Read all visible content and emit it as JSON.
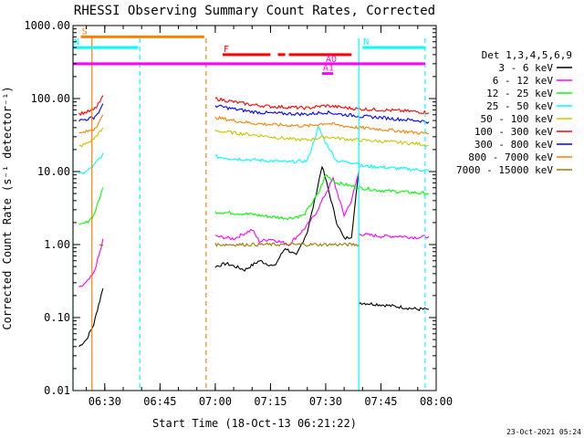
{
  "chart_data": {
    "type": "line",
    "title": "RHESSI Observing Summary Count Rates, Corrected",
    "xlabel": "Start Time (18-Oct-13 06:21:22)",
    "ylabel": "Corrected Count Rate (s⁻¹ detector⁻¹)",
    "scale": {
      "y": "log"
    },
    "xlim": [
      "06:21:22",
      "08:00:00"
    ],
    "ylim": [
      0.01,
      1000
    ],
    "xticks": [
      "06:30",
      "06:45",
      "07:00",
      "07:15",
      "07:30",
      "07:45",
      "08:00"
    ],
    "yticks": [
      "0.01",
      "0.10",
      "1.00",
      "10.00",
      "100.00",
      "1000.00"
    ],
    "legend": {
      "title": "Det 1,3,4,5,6,9",
      "position": "right"
    },
    "series": [
      {
        "name": "3 - 6 keV",
        "color": "#000000",
        "segments": [
          {
            "x": [
              "06:23",
              "06:25",
              "06:27",
              "06:28",
              "06:29",
              "06:29:30"
            ],
            "y": [
              0.04,
              0.05,
              0.08,
              0.13,
              0.2,
              0.25
            ]
          },
          {
            "x": [
              "07:00",
              "07:03",
              "07:08",
              "07:12",
              "07:16",
              "07:19",
              "07:22",
              "07:25",
              "07:27",
              "07:29",
              "07:31",
              "07:33",
              "07:35",
              "07:37",
              "07:39"
            ],
            "y": [
              0.5,
              0.55,
              0.45,
              0.6,
              0.5,
              0.9,
              0.7,
              1.5,
              4,
              12,
              5,
              2,
              1.2,
              1.3,
              10
            ]
          },
          {
            "x": [
              "07:39",
              "07:45",
              "07:50",
              "07:55",
              "07:58"
            ],
            "y": [
              0.16,
              0.15,
              0.14,
              0.13,
              0.13
            ]
          }
        ]
      },
      {
        "name": "6 - 12 keV",
        "color": "#ff00ff",
        "segments": [
          {
            "x": [
              "06:23",
              "06:25",
              "06:27",
              "06:28",
              "06:29",
              "06:29:30"
            ],
            "y": [
              0.25,
              0.3,
              0.4,
              0.6,
              0.9,
              1.2
            ]
          },
          {
            "x": [
              "07:00",
              "07:05",
              "07:10",
              "07:12",
              "07:15",
              "07:20",
              "07:24",
              "07:27",
              "07:30",
              "07:32",
              "07:35",
              "07:37",
              "07:39"
            ],
            "y": [
              1.3,
              1.2,
              1.6,
              1.1,
              1.2,
              1.0,
              1.6,
              2.5,
              5,
              8,
              2.5,
              4,
              10
            ]
          },
          {
            "x": [
              "07:39",
              "07:45",
              "07:50",
              "07:55",
              "07:58"
            ],
            "y": [
              1.4,
              1.3,
              1.3,
              1.25,
              1.3
            ]
          }
        ]
      },
      {
        "name": "12 - 25 keV",
        "color": "#00ff00",
        "segments": [
          {
            "x": [
              "06:23",
              "06:25",
              "06:27",
              "06:28",
              "06:29",
              "06:29:30"
            ],
            "y": [
              1.8,
              2,
              2.5,
              3.5,
              5,
              6
            ]
          },
          {
            "x": [
              "07:00",
              "07:05",
              "07:10",
              "07:15",
              "07:20",
              "07:24",
              "07:28",
              "07:30",
              "07:33",
              "07:36",
              "07:39"
            ],
            "y": [
              2.8,
              2.7,
              2.6,
              2.4,
              2.3,
              2.5,
              5,
              9,
              7,
              6.5,
              6
            ]
          },
          {
            "x": [
              "07:39",
              "07:45",
              "07:50",
              "07:55",
              "07:58"
            ],
            "y": [
              6,
              5.5,
              5.3,
              5.1,
              5
            ]
          }
        ]
      },
      {
        "name": "25 - 50 keV",
        "color": "#00ffff",
        "segments": [
          {
            "x": [
              "06:23",
              "06:25",
              "06:27",
              "06:28",
              "06:29",
              "06:29:30"
            ],
            "y": [
              9,
              10,
              12,
              14,
              16,
              18
            ]
          },
          {
            "x": [
              "07:00",
              "07:05",
              "07:10",
              "07:15",
              "07:20",
              "07:25",
              "07:28",
              "07:30",
              "07:33",
              "07:36",
              "07:39"
            ],
            "y": [
              16,
              15,
              14.5,
              14,
              13.5,
              14,
              40,
              25,
              14,
              13.5,
              13
            ]
          },
          {
            "x": [
              "07:39",
              "07:45",
              "07:50",
              "07:55",
              "07:58"
            ],
            "y": [
              12,
              11.5,
              11,
              10.6,
              10.3
            ]
          }
        ]
      },
      {
        "name": "50 - 100 keV",
        "color": "#c8c800",
        "segments": [
          {
            "x": [
              "06:23",
              "06:25",
              "06:27",
              "06:28",
              "06:29",
              "06:29:30"
            ],
            "y": [
              22,
              24,
              28,
              32,
              36,
              40
            ]
          },
          {
            "x": [
              "07:00",
              "07:05",
              "07:10",
              "07:15",
              "07:20",
              "07:25",
              "07:30",
              "07:35",
              "07:39"
            ],
            "y": [
              36,
              34,
              32,
              30,
              28,
              27,
              30,
              28,
              27
            ]
          },
          {
            "x": [
              "07:39",
              "07:45",
              "07:50",
              "07:55",
              "07:58"
            ],
            "y": [
              27,
              26,
              25,
              24,
              23
            ]
          }
        ]
      },
      {
        "name": "100 - 300 keV",
        "color": "#ff0000",
        "segments": [
          {
            "x": [
              "06:23",
              "06:25",
              "06:27",
              "06:28",
              "06:29",
              "06:29:30"
            ],
            "y": [
              62,
              65,
              70,
              80,
              95,
              110
            ]
          },
          {
            "x": [
              "07:00",
              "07:05",
              "07:10",
              "07:15",
              "07:20",
              "07:25",
              "07:30",
              "07:35",
              "07:39"
            ],
            "y": [
              100,
              90,
              82,
              78,
              76,
              74,
              80,
              75,
              72
            ]
          },
          {
            "x": [
              "07:39",
              "07:45",
              "07:50",
              "07:55",
              "07:58"
            ],
            "y": [
              72,
              70,
              68,
              66,
              64
            ]
          }
        ]
      },
      {
        "name": "300 - 800 keV",
        "color": "#0000ff",
        "segments": [
          {
            "x": [
              "06:23",
              "06:25",
              "06:27",
              "06:28",
              "06:29",
              "06:29:30"
            ],
            "y": [
              50,
              52,
              55,
              62,
              72,
              85
            ]
          },
          {
            "x": [
              "07:00",
              "07:05",
              "07:10",
              "07:15",
              "07:20",
              "07:25",
              "07:30",
              "07:35",
              "07:39"
            ],
            "y": [
              80,
              72,
              66,
              63,
              62,
              61,
              65,
              60,
              58
            ]
          },
          {
            "x": [
              "07:39",
              "07:45",
              "07:50",
              "07:55",
              "07:58"
            ],
            "y": [
              57,
              55,
              52,
              50,
              48
            ]
          }
        ]
      },
      {
        "name": "800 - 7000 keV",
        "color": "#ff8000",
        "segments": [
          {
            "x": [
              "06:23",
              "06:25",
              "06:27",
              "06:28",
              "06:29",
              "06:29:30"
            ],
            "y": [
              33,
              35,
              38,
              44,
              52,
              60
            ]
          },
          {
            "x": [
              "07:00",
              "07:05",
              "07:10",
              "07:15",
              "07:20",
              "07:25",
              "07:30",
              "07:35",
              "07:39"
            ],
            "y": [
              55,
              50,
              46,
              44,
              43,
              42,
              46,
              42,
              40
            ]
          },
          {
            "x": [
              "07:39",
              "07:45",
              "07:50",
              "07:55",
              "07:58"
            ],
            "y": [
              40,
              38,
              36,
              34,
              33
            ]
          }
        ]
      },
      {
        "name": "7000 - 15000 keV",
        "color": "#a07800",
        "segments": [
          {
            "x": [
              "06:28:30",
              "06:29:30"
            ],
            "y": [
              1.0,
              1.0
            ]
          },
          {
            "x": [
              "07:00",
              "07:10",
              "07:20",
              "07:30",
              "07:39"
            ],
            "y": [
              1.0,
              1.0,
              1.0,
              1.0,
              1.0
            ]
          }
        ]
      }
    ],
    "annotations": [
      {
        "label": "S",
        "color": "#ff8000",
        "x": [
          "06:23:30",
          "06:57"
        ],
        "y": 700
      },
      {
        "label": "N",
        "color": "#00ffff",
        "x": [
          "06:21:22",
          "06:39"
        ],
        "y": 500
      },
      {
        "label": "N",
        "color": "#00ffff",
        "x": [
          "07:40",
          "07:57"
        ],
        "y": 500
      },
      {
        "label": "F",
        "color": "#ff0000",
        "x": [
          "07:02",
          "07:15"
        ],
        "y": 400
      },
      {
        "label": "",
        "color": "#ff0000",
        "x": [
          "07:17",
          "07:19"
        ],
        "y": 400
      },
      {
        "label": "",
        "color": "#ff0000",
        "x": [
          "07:20",
          "07:37"
        ],
        "y": 400
      },
      {
        "label": "",
        "color": "#ff00ff",
        "x": [
          "06:21:22",
          "07:57"
        ],
        "y": 300
      },
      {
        "label": "A1",
        "color": "#ff00ff",
        "x": [
          "07:29",
          "07:32"
        ],
        "y": 220
      },
      {
        "label": "AO",
        "color": "#ff00ff",
        "x": [],
        "y": 300
      }
    ],
    "vlines": [
      {
        "x": "06:21:22",
        "color": "#00ffff",
        "style": "solid"
      },
      {
        "x": "06:26:30",
        "color": "#ff8000",
        "style": "solid"
      },
      {
        "x": "06:39:30",
        "color": "#00ffff",
        "style": "dashed"
      },
      {
        "x": "06:57:30",
        "color": "#ff8000",
        "style": "dashed"
      },
      {
        "x": "07:39",
        "color": "#00ffff",
        "style": "solid"
      },
      {
        "x": "07:57",
        "color": "#00ffff",
        "style": "dashed"
      }
    ]
  },
  "footer": {
    "timestamp": "23-Oct-2021 05:24"
  }
}
